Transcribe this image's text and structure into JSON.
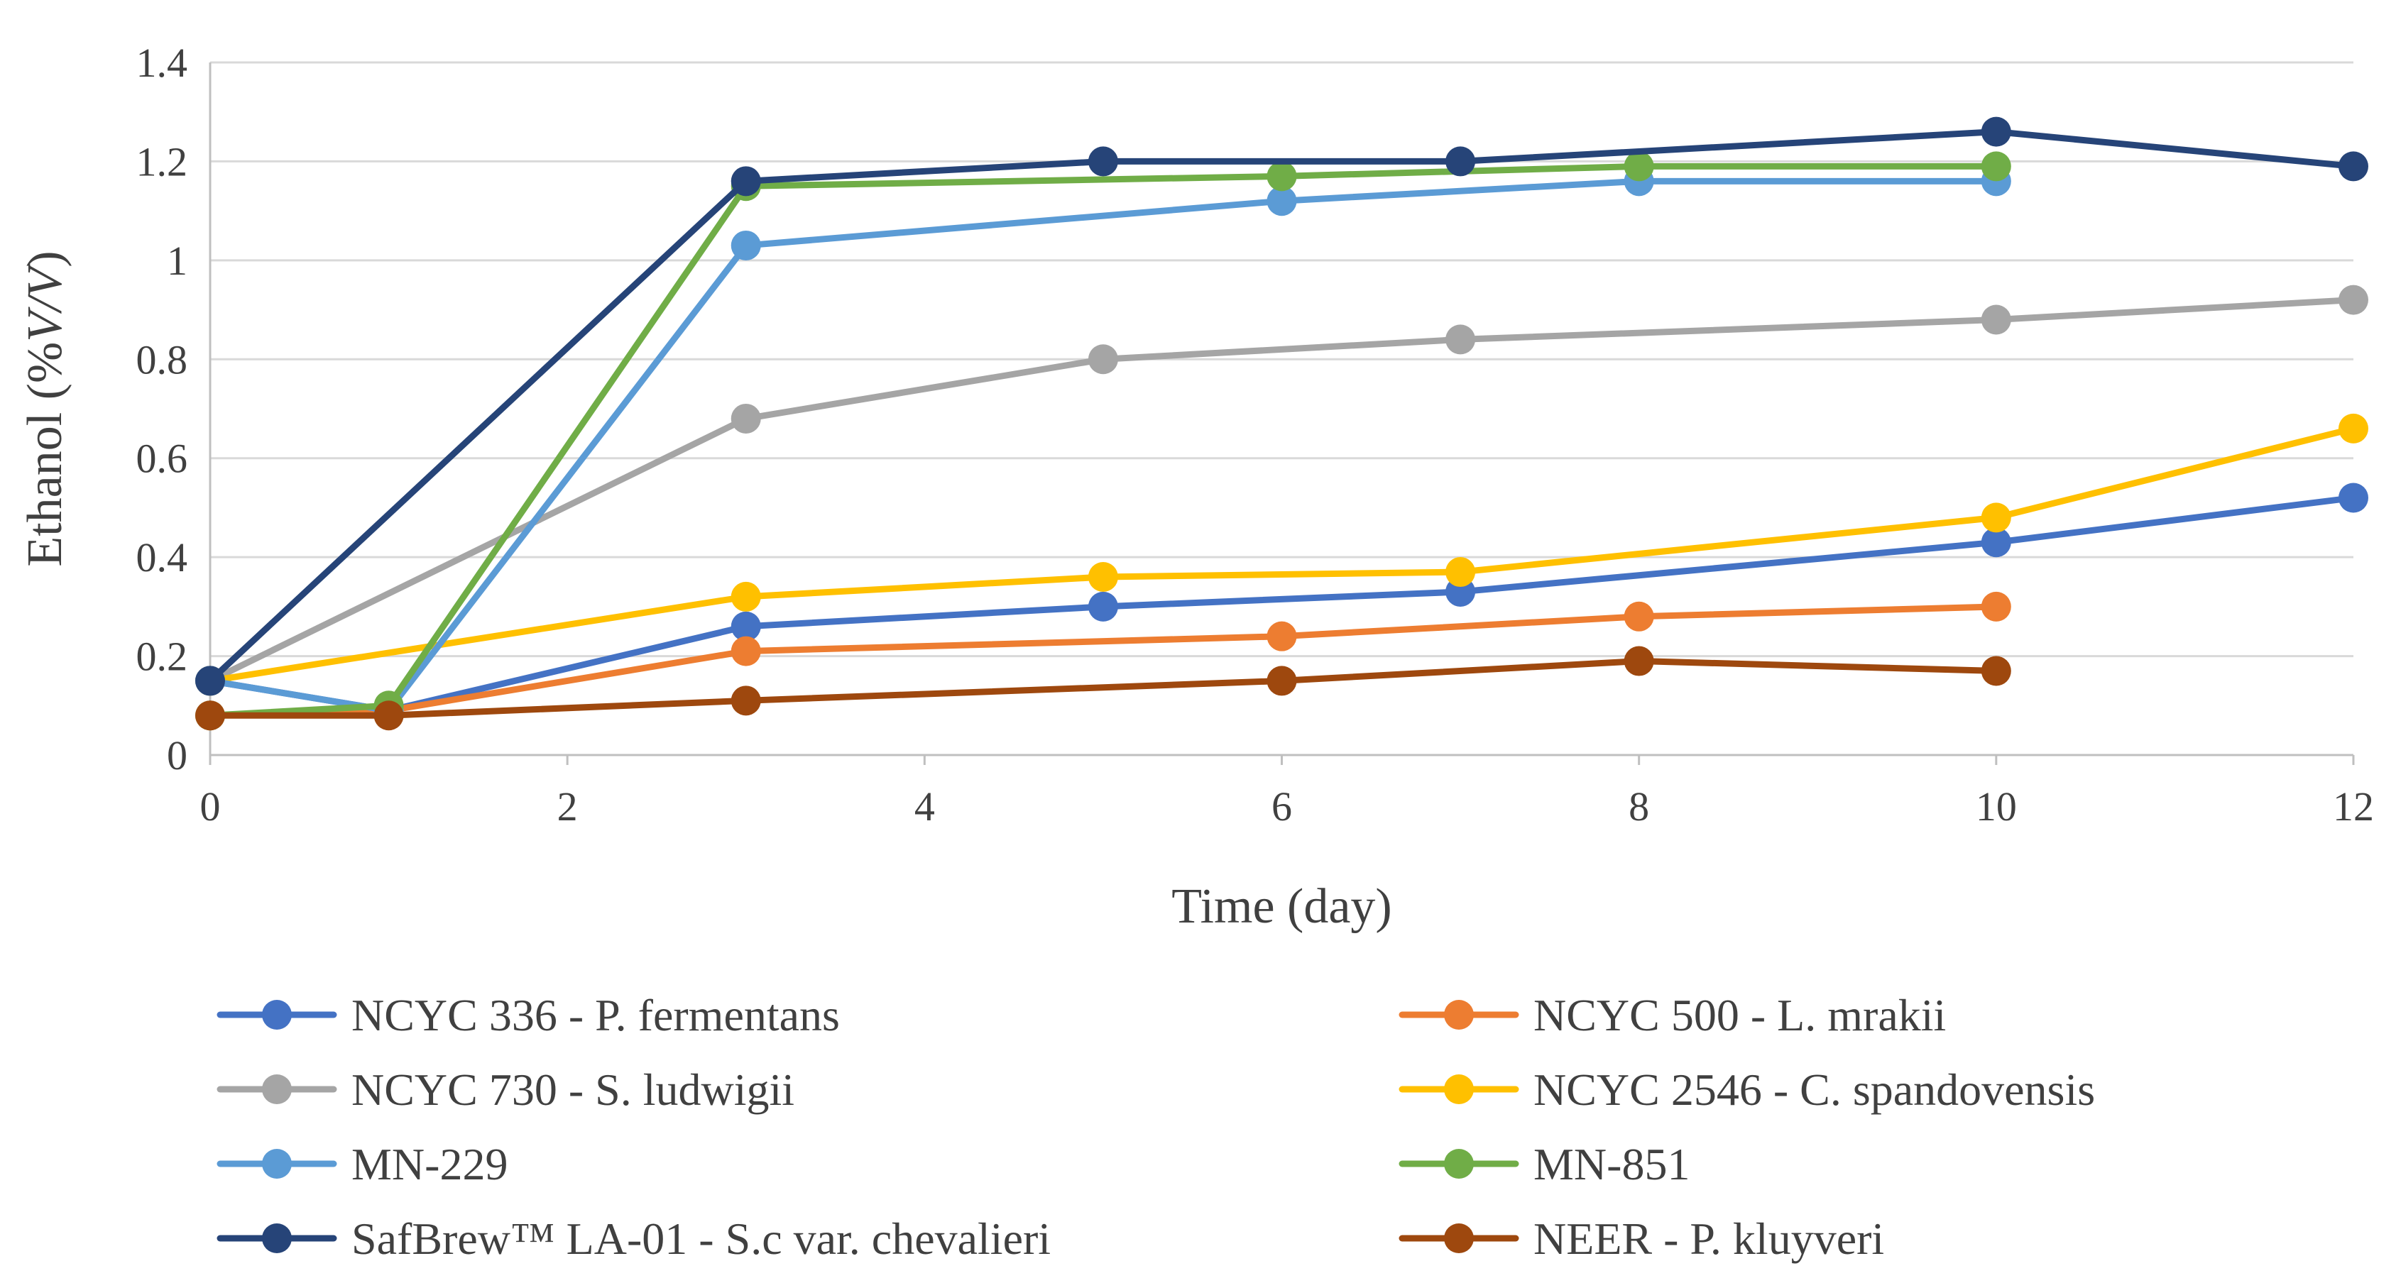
{
  "chart_data": {
    "type": "line",
    "title": "",
    "xlabel": "Time (day)",
    "ylabel": "Ethanol (%V/V)",
    "ylabel_parts": {
      "prefix": "Ethanol (%",
      "italic": "V/V",
      "suffix": ")"
    },
    "xlim": [
      0,
      12
    ],
    "ylim": [
      0,
      1.4
    ],
    "x_ticks": [
      "0",
      "2",
      "4",
      "6",
      "8",
      "10",
      "12"
    ],
    "y_ticks": [
      "0",
      "0.2",
      "0.4",
      "0.6",
      "0.8",
      "1",
      "1.2",
      "1.4"
    ],
    "grid": true,
    "legend_position": "bottom",
    "series": [
      {
        "name": "NCYC 336 - P. fermentans",
        "color": "#4472C4",
        "points": [
          [
            0,
            0.15
          ],
          [
            1,
            0.09
          ],
          [
            3,
            0.26
          ],
          [
            5,
            0.3
          ],
          [
            7,
            0.33
          ],
          [
            10,
            0.43
          ],
          [
            12,
            0.52
          ]
        ]
      },
      {
        "name": "NCYC 500 - L. mrakii",
        "color": "#ED7D31",
        "points": [
          [
            0,
            0.08
          ],
          [
            1,
            0.09
          ],
          [
            3,
            0.21
          ],
          [
            6,
            0.24
          ],
          [
            8,
            0.28
          ],
          [
            10,
            0.3
          ]
        ]
      },
      {
        "name": "NCYC 730 - S. ludwigii",
        "color": "#A5A5A5",
        "points": [
          [
            0,
            0.15
          ],
          [
            3,
            0.68
          ],
          [
            5,
            0.8
          ],
          [
            7,
            0.84
          ],
          [
            10,
            0.88
          ],
          [
            12,
            0.92
          ]
        ]
      },
      {
        "name": "NCYC 2546 - C. spandovensis",
        "color": "#FFC000",
        "points": [
          [
            0,
            0.15
          ],
          [
            3,
            0.32
          ],
          [
            5,
            0.36
          ],
          [
            7,
            0.37
          ],
          [
            10,
            0.48
          ],
          [
            12,
            0.66
          ]
        ]
      },
      {
        "name": "MN-229",
        "color": "#5B9BD5",
        "points": [
          [
            0,
            0.15
          ],
          [
            1,
            0.09
          ],
          [
            3,
            1.03
          ],
          [
            6,
            1.12
          ],
          [
            8,
            1.16
          ],
          [
            10,
            1.16
          ]
        ]
      },
      {
        "name": "MN-851",
        "color": "#70AD47",
        "points": [
          [
            0,
            0.08
          ],
          [
            1,
            0.1
          ],
          [
            3,
            1.15
          ],
          [
            6,
            1.17
          ],
          [
            8,
            1.19
          ],
          [
            10,
            1.19
          ]
        ]
      },
      {
        "name": "SafBrew™ LA-01 - S.c var. chevalieri",
        "color": "#264478",
        "points": [
          [
            0,
            0.15
          ],
          [
            3,
            1.16
          ],
          [
            5,
            1.2
          ],
          [
            7,
            1.2
          ],
          [
            10,
            1.26
          ],
          [
            12,
            1.19
          ]
        ]
      },
      {
        "name": "NEER - P. kluyveri",
        "color": "#9E480E",
        "points": [
          [
            0,
            0.08
          ],
          [
            1,
            0.08
          ],
          [
            3,
            0.11
          ],
          [
            6,
            0.15
          ],
          [
            8,
            0.19
          ],
          [
            10,
            0.17
          ]
        ]
      }
    ]
  }
}
